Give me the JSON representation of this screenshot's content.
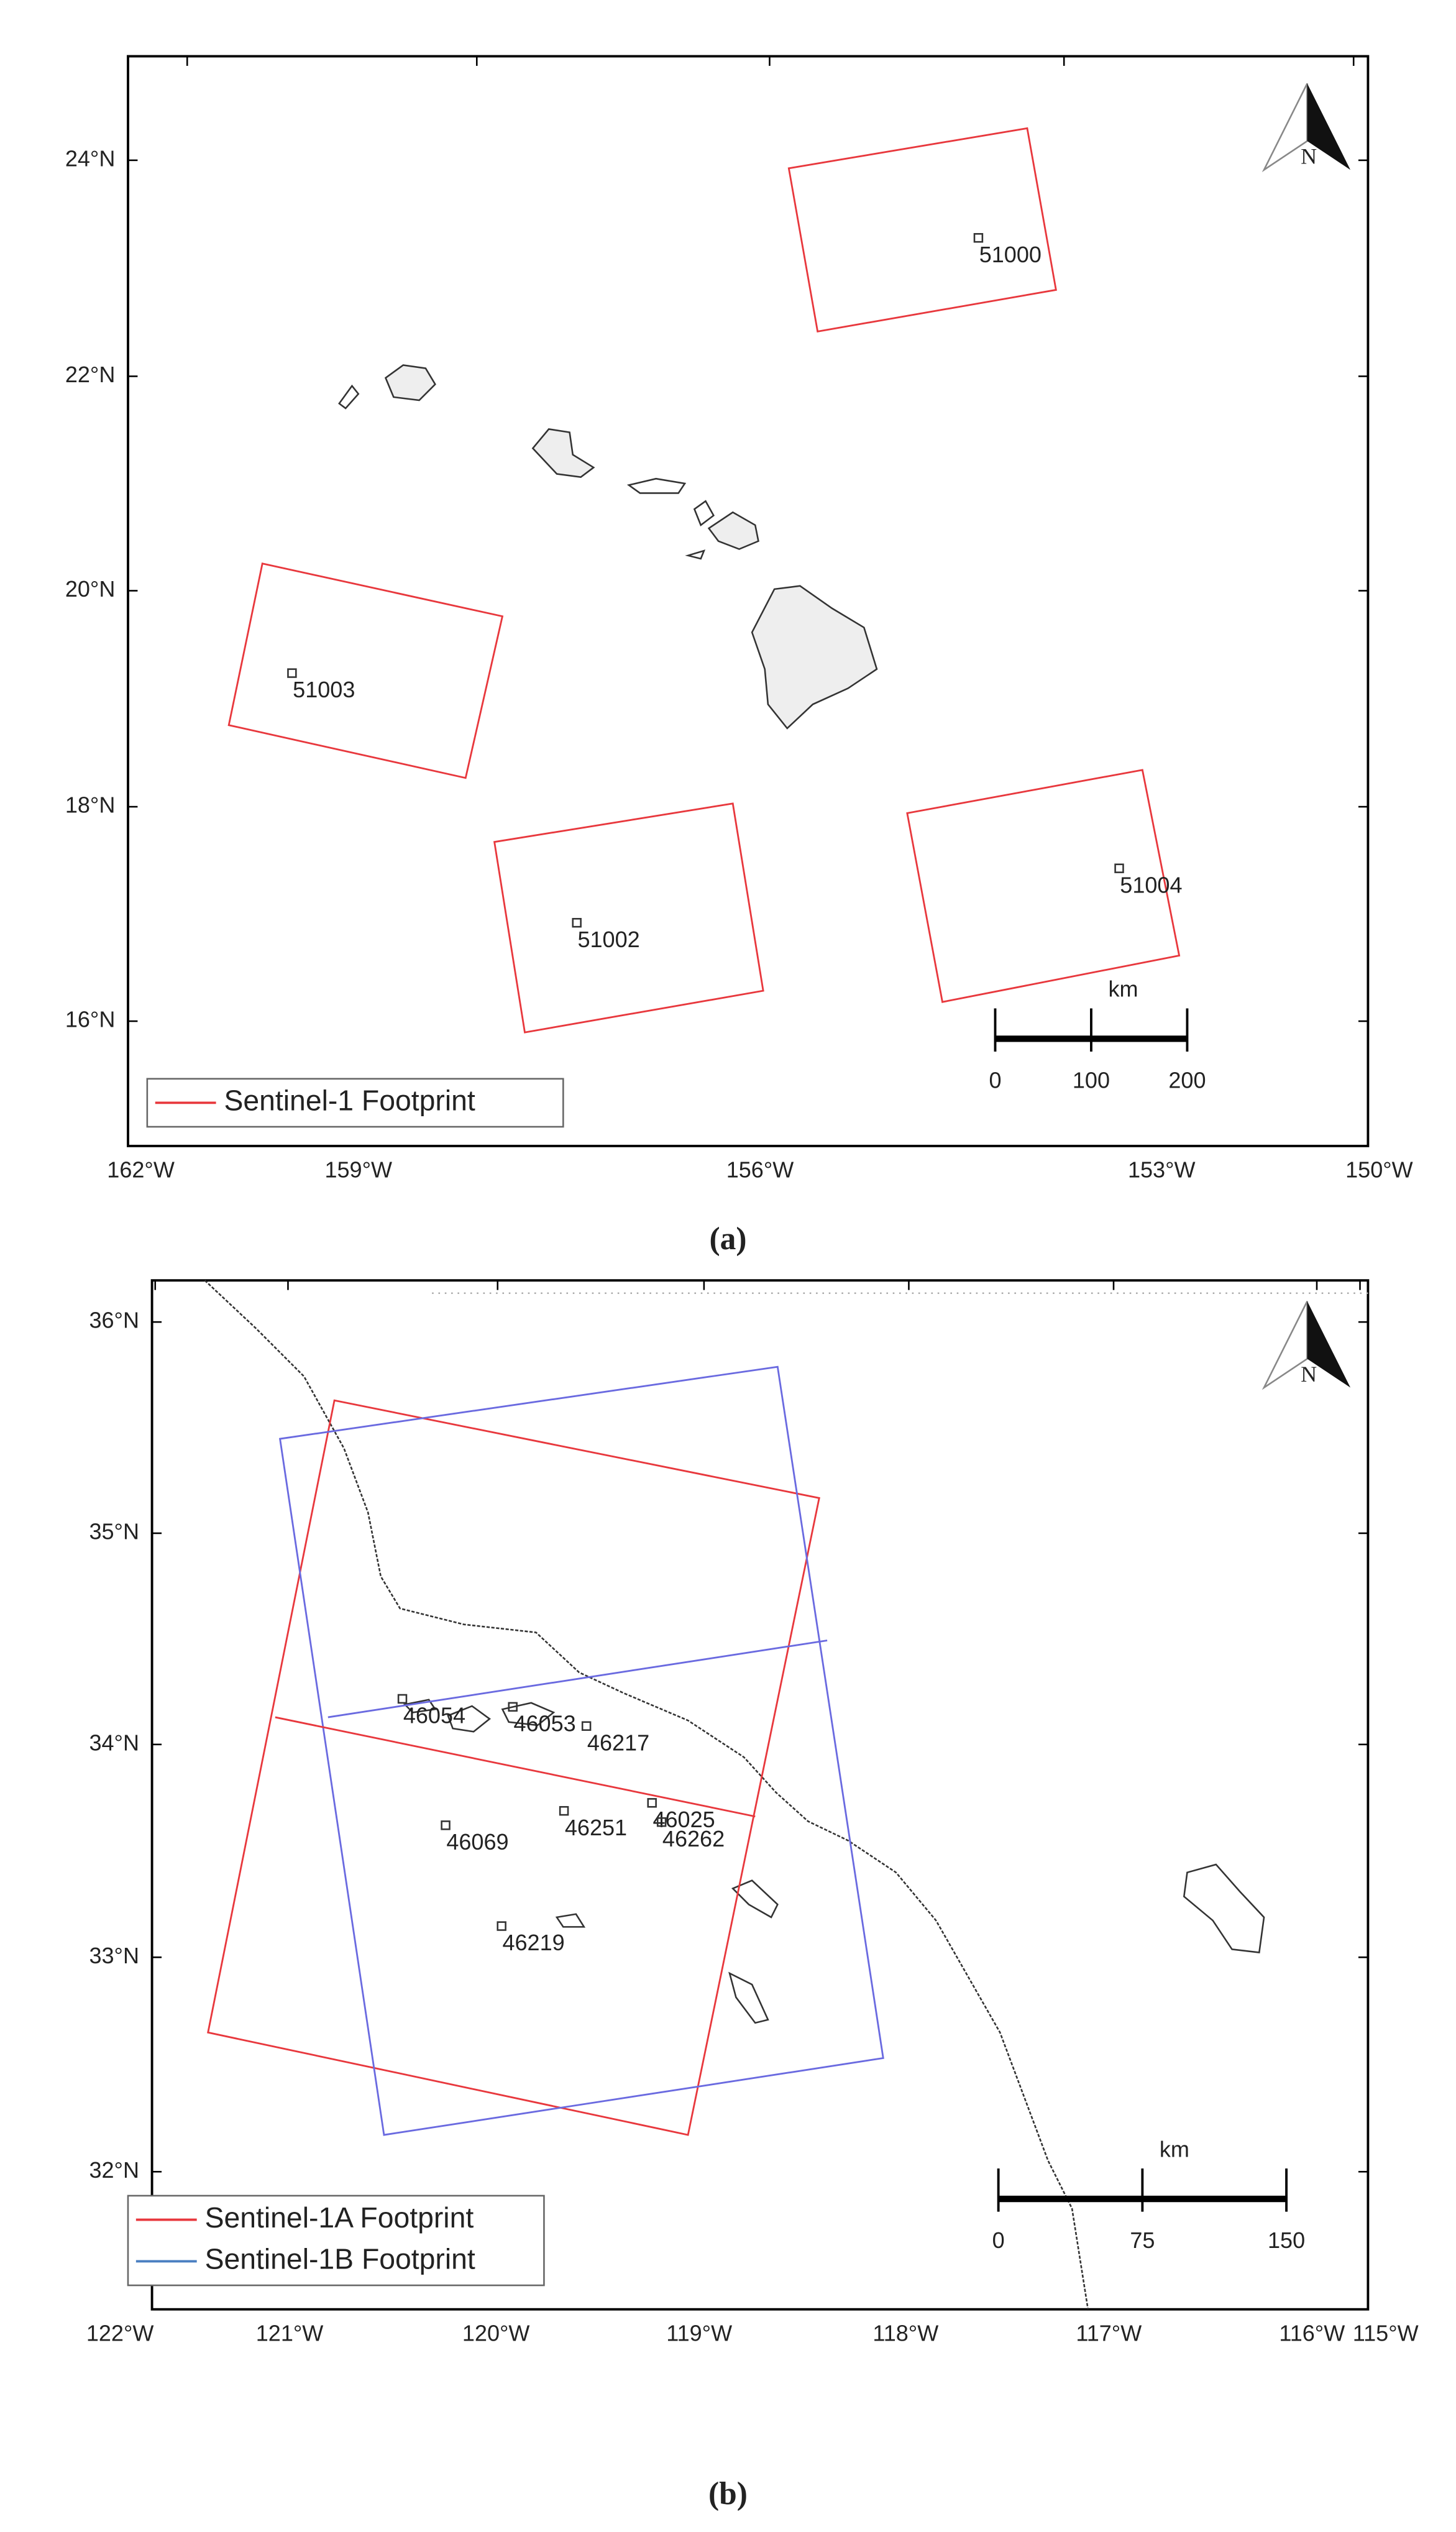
{
  "panels": [
    {
      "caption": "(a)",
      "lat_ticks": [
        "24°N",
        "22°N",
        "20°N",
        "18°N",
        "16°N"
      ],
      "lon_ticks": [
        "162°W",
        "159°W",
        "156°W",
        "153°W",
        "150°W"
      ],
      "buoys": [
        "51000",
        "51003",
        "51002",
        "51004"
      ],
      "legend": [
        {
          "name": "Sentinel-1 Footprint",
          "color": "#e8383d"
        }
      ],
      "scale_bar": {
        "unit": "km",
        "ticks": [
          0,
          100,
          200
        ]
      },
      "north": "N"
    },
    {
      "caption": "(b)",
      "lat_ticks": [
        "36°N",
        "35°N",
        "34°N",
        "33°N",
        "32°N"
      ],
      "lon_ticks": [
        "122°W",
        "121°W",
        "120°W",
        "119°W",
        "118°W",
        "117°W",
        "116°W",
        "115°W"
      ],
      "buoys": [
        "46054",
        "46053",
        "46217",
        "46025",
        "46251",
        "46262",
        "46069",
        "46219"
      ],
      "legend": [
        {
          "name": "Sentinel-1A Footprint",
          "color": "#e8383d"
        },
        {
          "name": "Sentinel-1B Footprint",
          "color": "#4a7fc1"
        }
      ],
      "scale_bar": {
        "unit": "km",
        "ticks": [
          0,
          75,
          150
        ]
      },
      "north": "N"
    }
  ]
}
